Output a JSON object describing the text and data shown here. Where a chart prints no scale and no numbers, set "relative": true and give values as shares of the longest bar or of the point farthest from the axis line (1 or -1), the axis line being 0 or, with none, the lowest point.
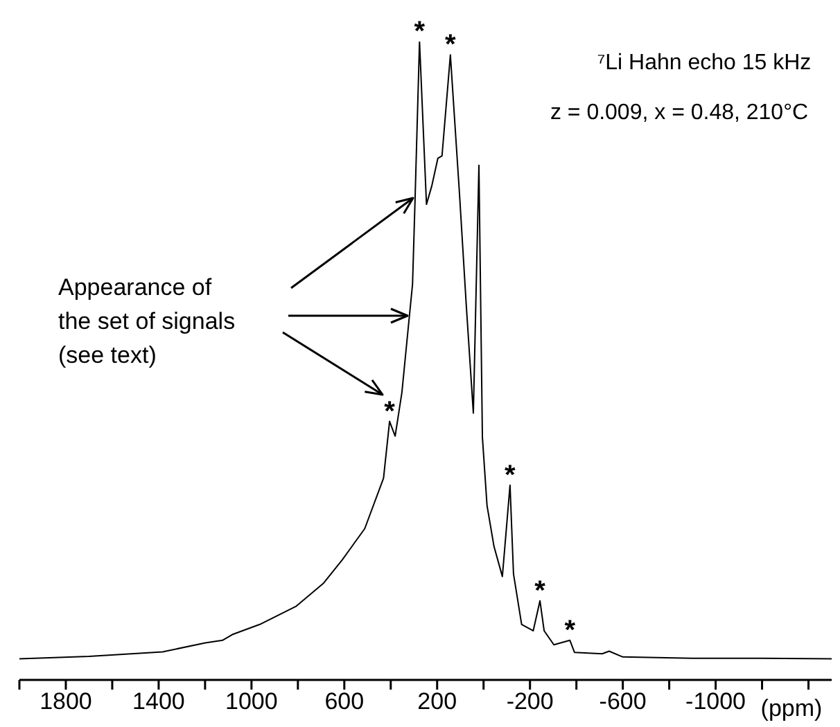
{
  "chart_data": {
    "type": "line",
    "relative": true,
    "xlabel": "(ppm)",
    "marker": "none",
    "color": "#000000",
    "xlim": [
      2000,
      -1500
    ],
    "xticks": [
      {
        "value": 2000,
        "label": null
      },
      1800,
      {
        "value": 1600,
        "label": null
      },
      1400,
      {
        "value": 1200,
        "label": null
      },
      1000,
      {
        "value": 800,
        "label": null
      },
      600,
      {
        "value": 400,
        "label": null
      },
      200,
      {
        "value": 0,
        "label": null
      },
      -200,
      {
        "value": -400,
        "label": null
      },
      -600,
      {
        "value": -800,
        "label": null
      },
      -1000,
      {
        "value": -1200,
        "label": null
      },
      {
        "value": -1400,
        "label": null
      }
    ],
    "x": [
      2000,
      1700,
      1383,
      1199,
      1125,
      1083,
      964,
      809,
      691,
      609,
      512,
      431,
      405,
      381,
      352,
      322,
      306,
      296,
      276,
      246,
      223,
      197,
      179,
      143,
      104,
      74,
      44,
      20,
      5,
      -15,
      -45,
      -81,
      -114,
      -129,
      -164,
      -214,
      -243,
      -261,
      -303,
      -372,
      -392,
      -511,
      -541,
      -600,
      -900,
      -1200,
      -1500
    ],
    "values": [
      0.033,
      0.037,
      0.044,
      0.058,
      0.062,
      0.071,
      0.087,
      0.115,
      0.151,
      0.188,
      0.237,
      0.316,
      0.405,
      0.382,
      0.45,
      0.561,
      0.62,
      0.742,
      1.0,
      0.745,
      0.774,
      0.817,
      0.821,
      0.979,
      0.763,
      0.584,
      0.418,
      0.806,
      0.38,
      0.273,
      0.209,
      0.162,
      0.305,
      0.166,
      0.087,
      0.077,
      0.124,
      0.077,
      0.055,
      0.062,
      0.043,
      0.041,
      0.045,
      0.036,
      0.034,
      0.034,
      0.033
    ],
    "annotations": [
      "⁷Li Hahn echo 15 kHz",
      "z = 0.009, x = 0.48, 210°C",
      "Appearance of\nthe set of signals\n(see text)",
      {
        "text": "*",
        "x": 276,
        "y": 1.0
      },
      {
        "text": "*",
        "x": 143,
        "y": 0.979
      },
      {
        "text": "*",
        "x": 405,
        "y": 0.405
      },
      {
        "text": "*",
        "x": -114,
        "y": 0.305
      },
      {
        "text": "*",
        "x": -243,
        "y": 0.124
      },
      {
        "text": "*",
        "x": -372,
        "y": 0.062
      }
    ]
  }
}
